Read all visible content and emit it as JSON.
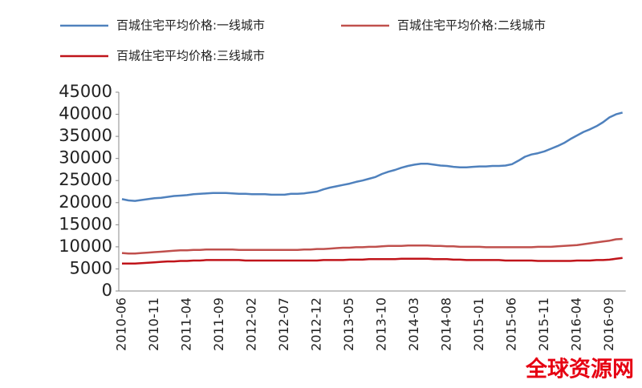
{
  "chart_data": {
    "type": "line",
    "categories": [
      "2010-06",
      null,
      null,
      null,
      null,
      "2010-11",
      null,
      null,
      null,
      null,
      "2011-04",
      null,
      null,
      null,
      null,
      "2011-09",
      null,
      null,
      null,
      null,
      "2012-02",
      null,
      null,
      null,
      null,
      "2012-07",
      null,
      null,
      null,
      null,
      "2012-12",
      null,
      null,
      null,
      null,
      "2013-05",
      null,
      null,
      null,
      null,
      "2013-10",
      null,
      null,
      null,
      null,
      "2014-03",
      null,
      null,
      null,
      null,
      "2014-08",
      null,
      null,
      null,
      null,
      "2015-01",
      null,
      null,
      null,
      null,
      "2015-06",
      null,
      null,
      null,
      null,
      "2015-11",
      null,
      null,
      null,
      null,
      "2016-04",
      null,
      null,
      null,
      null,
      "2016-09",
      null,
      null
    ],
    "series": [
      {
        "name": "百城住宅平均价格:一线城市",
        "color": "#4f81bd",
        "values": [
          20800,
          20500,
          20400,
          20600,
          20800,
          21000,
          21100,
          21300,
          21500,
          21600,
          21700,
          21900,
          22000,
          22100,
          22200,
          22200,
          22200,
          22100,
          22000,
          22000,
          21900,
          21900,
          21900,
          21800,
          21800,
          21800,
          22000,
          22000,
          22100,
          22300,
          22500,
          23000,
          23400,
          23700,
          24000,
          24300,
          24700,
          25000,
          25400,
          25800,
          26500,
          27000,
          27400,
          27900,
          28300,
          28600,
          28800,
          28800,
          28600,
          28400,
          28300,
          28100,
          28000,
          28000,
          28100,
          28200,
          28200,
          28300,
          28300,
          28400,
          28700,
          29500,
          30400,
          30900,
          31200,
          31600,
          32200,
          32800,
          33500,
          34400,
          35200,
          36000,
          36600,
          37300,
          38200,
          39300,
          40000,
          40400
        ]
      },
      {
        "name": "百城住宅平均价格:二线城市",
        "color": "#c0504d",
        "values": [
          8600,
          8500,
          8500,
          8600,
          8700,
          8800,
          8900,
          9000,
          9100,
          9200,
          9200,
          9300,
          9300,
          9400,
          9400,
          9400,
          9400,
          9400,
          9300,
          9300,
          9300,
          9300,
          9300,
          9300,
          9300,
          9300,
          9300,
          9300,
          9400,
          9400,
          9500,
          9500,
          9600,
          9700,
          9800,
          9800,
          9900,
          9900,
          10000,
          10000,
          10100,
          10200,
          10200,
          10200,
          10300,
          10300,
          10300,
          10300,
          10200,
          10200,
          10100,
          10100,
          10000,
          10000,
          10000,
          10000,
          9900,
          9900,
          9900,
          9900,
          9900,
          9900,
          9900,
          9900,
          10000,
          10000,
          10000,
          10100,
          10200,
          10300,
          10400,
          10600,
          10800,
          11000,
          11200,
          11400,
          11700,
          11800
        ]
      },
      {
        "name": "百城住宅平均价格:三线城市",
        "color": "#c0141a",
        "values": [
          6200,
          6200,
          6200,
          6300,
          6400,
          6500,
          6600,
          6700,
          6700,
          6800,
          6800,
          6900,
          6900,
          7000,
          7000,
          7000,
          7000,
          7000,
          7000,
          6900,
          6900,
          6900,
          6900,
          6900,
          6900,
          6900,
          6900,
          6900,
          6900,
          6900,
          6900,
          7000,
          7000,
          7000,
          7000,
          7100,
          7100,
          7100,
          7200,
          7200,
          7200,
          7200,
          7200,
          7300,
          7300,
          7300,
          7300,
          7300,
          7200,
          7200,
          7200,
          7100,
          7100,
          7000,
          7000,
          7000,
          7000,
          7000,
          7000,
          6900,
          6900,
          6900,
          6900,
          6900,
          6800,
          6800,
          6800,
          6800,
          6800,
          6800,
          6900,
          6900,
          6900,
          7000,
          7000,
          7100,
          7300,
          7500
        ]
      }
    ],
    "ylim": [
      0,
      45000
    ],
    "yticks": [
      0,
      5000,
      10000,
      15000,
      20000,
      25000,
      30000,
      35000,
      40000,
      45000
    ],
    "grid": false,
    "watermark": "全球资源网"
  }
}
